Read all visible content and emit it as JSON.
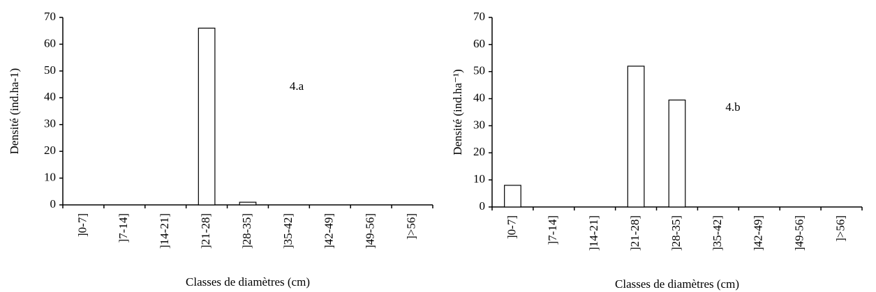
{
  "chart_data": [
    {
      "type": "bar",
      "annotation": "4.a",
      "x_label": "Classes de diamètres (cm)",
      "y_label": "Densité (ind.ha-1)",
      "categories": [
        "]0-7]",
        "]7-14]",
        "]14-21]",
        "]21-28]",
        "]28-35]",
        "]35-42]",
        "]42-49]",
        "]49-56]",
        "]>56]"
      ],
      "values": [
        0,
        0,
        0,
        66,
        1,
        0,
        0,
        0,
        0
      ],
      "color": "#ffffff",
      "ylim": [
        0,
        70
      ],
      "yticks": [
        0,
        10,
        20,
        30,
        40,
        50,
        60,
        70
      ]
    },
    {
      "type": "bar",
      "annotation": "4.b",
      "x_label": "Classes de diamètres (cm)",
      "y_label": "Densité (ind.ha⁻¹)",
      "categories": [
        "]0-7]",
        "]7-14]",
        "]14-21]",
        "]21-28]",
        "]28-35]",
        "]35-42]",
        "]42-49]",
        "]49-56]",
        "]>56]"
      ],
      "values": [
        8,
        0,
        0,
        52,
        39.5,
        0,
        0,
        0,
        0
      ],
      "color": "#ffffff",
      "ylim": [
        0,
        70
      ],
      "yticks": [
        0,
        10,
        20,
        30,
        40,
        50,
        60,
        70
      ]
    }
  ]
}
